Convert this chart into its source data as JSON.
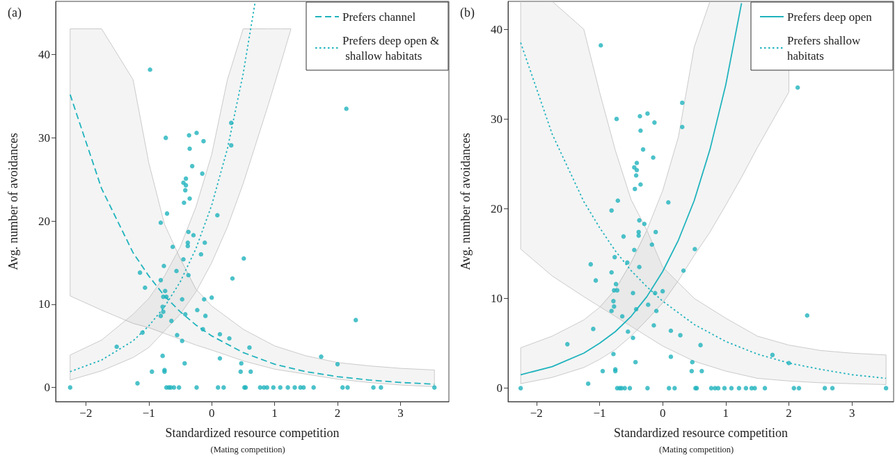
{
  "chart_data": [
    {
      "type": "scatter",
      "title": "(a)",
      "xlabel": "Standardized resource competition",
      "ylabel": "Avg. number of avoidances",
      "annotations": [
        "(Mating competition)"
      ],
      "xlim": [
        -2.48,
        3.77
      ],
      "xticks": [
        -2,
        -1,
        0,
        1,
        2,
        3
      ],
      "ylim": [
        -1.7,
        46.4
      ],
      "yticks": [
        0,
        10,
        20,
        30,
        40
      ],
      "grid": false,
      "legend": "top right",
      "marker": "circle",
      "series": [
        {
          "color": "#1fb3bd",
          "x": [
            -0.98,
            -0.73,
            -0.36,
            -0.24,
            -0.13,
            -0.35,
            -0.31,
            -0.15,
            -0.41,
            -0.45,
            -0.41,
            -0.42,
            -0.35,
            -0.44,
            -0.71,
            -0.81,
            0.31,
            0.31,
            0.09,
            -0.37,
            -0.29,
            -0.38,
            -0.38,
            -0.11,
            -0.62,
            -0.17,
            -0.45,
            0.51,
            -0.76,
            -0.56,
            -1.14,
            -0.37,
            0.33,
            -0.81,
            -1.06,
            -0.74,
            -0.77,
            -0.72,
            -0.47,
            -0.12,
            0.0,
            -0.78,
            -0.77,
            -0.81,
            -0.23,
            -0.1,
            -0.42,
            -0.64,
            -0.14,
            0.13,
            0.28,
            -0.55,
            -0.47,
            0.6,
            -0.78,
            0.13,
            -0.43,
            0.47,
            -0.95,
            -0.75,
            -0.75,
            0.46,
            0.62,
            -1.18,
            2.29,
            1.74,
            2.0,
            2.14,
            -1.51,
            -1.1,
            -2.25,
            -0.72,
            -0.68,
            -0.65,
            -0.6,
            -0.52,
            -0.24,
            0.1,
            0.19,
            0.52,
            0.54,
            0.77,
            0.83,
            0.88,
            0.98,
            1.09,
            1.21,
            1.32,
            1.41,
            1.46,
            1.62,
            2.08,
            2.16,
            2.57,
            2.69,
            3.54
          ],
          "values": [
            38.2,
            30.0,
            30.3,
            30.6,
            29.6,
            28.7,
            26.6,
            25.7,
            25.1,
            24.6,
            24.3,
            23.7,
            22.7,
            22.2,
            20.9,
            19.8,
            31.8,
            29.1,
            20.7,
            18.7,
            18.3,
            17.4,
            17.0,
            17.4,
            16.9,
            16.0,
            15.4,
            15.5,
            14.6,
            14.0,
            13.8,
            13.5,
            13.1,
            12.9,
            12.0,
            11.6,
            10.9,
            10.9,
            10.6,
            10.6,
            10.8,
            9.7,
            9.1,
            8.6,
            9.3,
            8.6,
            8.8,
            8.0,
            7.0,
            6.4,
            5.9,
            6.3,
            5.6,
            4.8,
            3.8,
            3.5,
            2.9,
            2.9,
            1.9,
            2.1,
            1.9,
            1.9,
            1.9,
            0.5,
            8.1,
            3.7,
            2.8,
            33.5,
            4.9,
            6.6,
            0,
            0,
            0,
            0,
            0,
            0,
            0,
            0,
            0,
            0,
            0,
            0,
            0,
            0,
            0,
            0,
            0,
            0,
            0,
            0,
            0,
            0,
            0,
            0,
            0,
            0
          ]
        },
        {
          "type": "line",
          "name": "Prefers channel",
          "color": "#1fb3bd",
          "line_style": "dashed",
          "marker": "none",
          "x": [
            -2.25,
            -1.75,
            -1.25,
            -1,
            -0.75,
            -0.5,
            -0.25,
            0,
            0.5,
            1,
            1.5,
            2,
            2.5,
            3,
            3.54
          ],
          "values": [
            35.2,
            23.9,
            16.2,
            13.4,
            11.0,
            9.1,
            7.5,
            6.2,
            4.2,
            2.8,
            1.9,
            1.3,
            0.9,
            0.6,
            0.4
          ],
          "upper": [
            43.1,
            43.1,
            37,
            27,
            19.6,
            15.5,
            11.8,
            9.8,
            7.0,
            5.0,
            3.8,
            3.0,
            2.6,
            2.3,
            2.1
          ],
          "lower": [
            11.0,
            9.3,
            7.7,
            7.2,
            6.5,
            5.8,
            5.1,
            4.5,
            3.2,
            2.2,
            1.6,
            1.0,
            0.6,
            0.3,
            0.1
          ]
        },
        {
          "type": "line",
          "name": "Prefers deep open & shallow habitats",
          "color": "#1fb3bd",
          "line_style": "dotted",
          "marker": "none",
          "x": [
            -2.25,
            -1.75,
            -1.25,
            -1,
            -0.75,
            -0.5,
            -0.25,
            0,
            0.25,
            0.5,
            0.69,
            0.9,
            1.1,
            1.26
          ],
          "values": [
            1.9,
            3.3,
            5.6,
            7.4,
            9.7,
            12.7,
            16.7,
            21.9,
            28.7,
            37.7,
            46.3,
            null,
            null,
            null
          ],
          "upper": [
            3.9,
            5.7,
            8.8,
            10.7,
            13.4,
            16.9,
            21.7,
            28,
            37,
            43.1,
            43.1,
            43.1,
            43.1,
            43.1
          ],
          "lower": [
            0.9,
            2.0,
            3.6,
            4.8,
            6.8,
            8.8,
            11.5,
            15,
            19.3,
            24.5,
            29,
            34,
            39,
            43.1
          ]
        }
      ]
    },
    {
      "type": "scatter",
      "title": "(b)",
      "xlabel": "Standardized resource competition",
      "ylabel": "Avg. number of avoidances",
      "annotations": [
        "(Mating competition)"
      ],
      "xlim": [
        -2.45,
        3.66
      ],
      "xticks": [
        -2,
        -1,
        0,
        1,
        2,
        3
      ],
      "ylim": [
        -1.5,
        43.1
      ],
      "yticks": [
        0,
        10,
        20,
        30,
        40
      ],
      "grid": false,
      "legend": "top right",
      "marker": "circle",
      "series": [
        {
          "color": "#1fb3bd",
          "x": [
            -0.98,
            -0.73,
            -0.36,
            -0.24,
            -0.13,
            -0.35,
            -0.31,
            -0.15,
            -0.41,
            -0.45,
            -0.41,
            -0.42,
            -0.35,
            -0.44,
            -0.71,
            -0.81,
            0.31,
            0.31,
            0.09,
            -0.37,
            -0.29,
            -0.38,
            -0.38,
            -0.11,
            -0.62,
            -0.17,
            -0.45,
            0.51,
            -0.76,
            -0.56,
            -1.14,
            -0.37,
            0.33,
            -0.81,
            -1.06,
            -0.74,
            -0.77,
            -0.72,
            -0.47,
            -0.12,
            0.0,
            -0.78,
            -0.77,
            -0.81,
            -0.23,
            -0.1,
            -0.42,
            -0.64,
            -0.14,
            0.13,
            0.28,
            -0.55,
            -0.47,
            0.6,
            -0.78,
            0.13,
            -0.43,
            0.47,
            -0.95,
            -0.75,
            -0.75,
            0.46,
            0.62,
            -1.18,
            2.29,
            1.74,
            2.0,
            2.14,
            -1.51,
            -1.1,
            -2.25,
            -0.72,
            -0.68,
            -0.65,
            -0.6,
            -0.52,
            -0.24,
            0.1,
            0.19,
            0.52,
            0.54,
            0.77,
            0.83,
            0.88,
            0.98,
            1.09,
            1.21,
            1.32,
            1.41,
            1.46,
            1.62,
            2.08,
            2.16,
            2.57,
            2.69,
            3.54
          ],
          "values": [
            38.2,
            30.0,
            30.3,
            30.6,
            29.6,
            28.7,
            26.6,
            25.7,
            25.1,
            24.6,
            24.3,
            23.7,
            22.7,
            22.2,
            20.9,
            19.8,
            31.8,
            29.1,
            20.7,
            18.7,
            18.3,
            17.4,
            17.0,
            17.4,
            16.9,
            16.0,
            15.4,
            15.5,
            14.6,
            14.0,
            13.8,
            13.5,
            13.1,
            12.9,
            12.0,
            11.6,
            10.9,
            10.9,
            10.6,
            10.6,
            10.8,
            9.7,
            9.1,
            8.6,
            9.3,
            8.6,
            8.8,
            8.0,
            7.0,
            6.4,
            5.9,
            6.3,
            5.6,
            4.8,
            3.8,
            3.5,
            2.9,
            2.9,
            1.9,
            2.1,
            1.9,
            1.9,
            1.9,
            0.5,
            8.1,
            3.7,
            2.8,
            33.5,
            4.9,
            6.6,
            0,
            0,
            0,
            0,
            0,
            0,
            0,
            0,
            0,
            0,
            0,
            0,
            0,
            0,
            0,
            0,
            0,
            0,
            0,
            0,
            0,
            0,
            0,
            0,
            0,
            0
          ]
        },
        {
          "type": "line",
          "name": "Prefers deep open",
          "color": "#1fb3bd",
          "line_style": "solid",
          "marker": "none",
          "x": [
            -2.25,
            -1.75,
            -1.25,
            -1,
            -0.75,
            -0.5,
            -0.25,
            0,
            0.25,
            0.5,
            0.75,
            1,
            1.25,
            1.5,
            2
          ],
          "values": [
            1.5,
            2.4,
            3.9,
            5.0,
            6.3,
            8.0,
            10.2,
            13.0,
            16.5,
            20.9,
            26.6,
            33.8,
            42.9,
            null,
            null
          ],
          "upper": [
            4.5,
            5.8,
            7.6,
            9,
            11,
            14,
            17.6,
            22,
            28,
            38,
            43.1,
            43.1,
            43.1,
            43.1,
            43.1
          ],
          "lower": [
            0.5,
            1.2,
            2.3,
            3.2,
            4.3,
            5.8,
            7.6,
            9.5,
            12.0,
            14.8,
            17.4,
            20.4,
            23.5,
            26.8,
            33
          ]
        },
        {
          "type": "line",
          "name": "Prefers shallow habitats",
          "color": "#1fb3bd",
          "line_style": "dotted",
          "marker": "none",
          "x": [
            -2.25,
            -1.75,
            -1.25,
            -1,
            -0.75,
            -0.5,
            -0.25,
            0,
            0.5,
            1,
            1.5,
            2,
            2.5,
            3,
            3.54
          ],
          "values": [
            38.5,
            28.3,
            20.8,
            17.9,
            15.3,
            13.1,
            11.3,
            9.7,
            7.1,
            5.2,
            3.8,
            2.8,
            2.1,
            1.5,
            1.1
          ],
          "upper": [
            43.1,
            43.1,
            40,
            33,
            26.5,
            21,
            17.6,
            13.5,
            10,
            7.8,
            5.8,
            4.8,
            4.2,
            3.9,
            3.7
          ],
          "lower": [
            15.5,
            12.5,
            10.2,
            9.1,
            8.0,
            6.9,
            5.8,
            4.7,
            3.0,
            1.9,
            1.1,
            0.8,
            0.6,
            0.5,
            0.4
          ]
        }
      ]
    }
  ]
}
